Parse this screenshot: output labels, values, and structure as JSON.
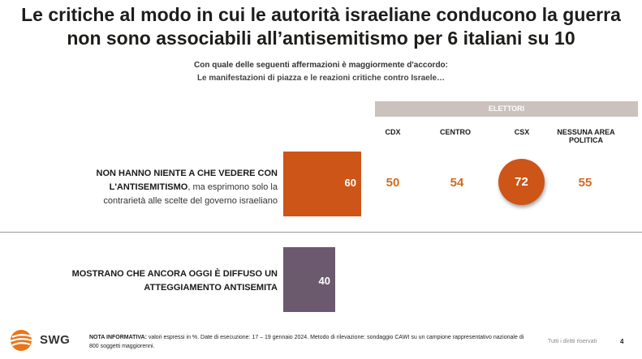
{
  "title_line1": "Le critiche al modo in cui le autorità israeliane conducono la guerra",
  "title_line2": "non sono associabili all’antisemitismo per 6 italiani su 10",
  "question": "Con quale delle seguenti affermazioni è maggiormente d'accordo:",
  "subquestion": "Le manifestazioni di piazza e le reazioni critiche contro Israele…",
  "group_header": "ELETTORI",
  "columns": [
    "CDX",
    "CENTRO",
    "CSX",
    "NESSUNA AREA POLITICA"
  ],
  "rows": [
    {
      "label_bold": "NON HANNO NIENTE A CHE VEDERE CON L'ANTISEMITISMO",
      "label_rest": ", ma esprimono solo la contrarietà alle scelte del governo israeliano",
      "total": "60",
      "values": [
        "50",
        "54",
        "72",
        "55"
      ]
    },
    {
      "label_bold": "MOSTRANO CHE ANCORA OGGI È DIFFUSO UN ATTEGGIAMENTO ANTISEMITA",
      "label_rest": "",
      "total": "40",
      "values": []
    }
  ],
  "chart_data": {
    "type": "bar",
    "categories": [
      "NON HANNO NIENTE A CHE VEDERE CON L'ANTISEMITISMO, ma esprimono solo la contrarietà alle scelte del governo israeliano",
      "MOSTRANO CHE ANCORA OGGI È DIFFUSO UN ATTEGGIAMENTO ANTISEMITA"
    ],
    "values": [
      60,
      40
    ],
    "breakdown": {
      "group": "ELETTORI",
      "columns": [
        "CDX",
        "CENTRO",
        "CSX",
        "NESSUNA AREA POLITICA"
      ],
      "values": [
        [
          50,
          54,
          72,
          55
        ]
      ]
    },
    "highlight": "CSX",
    "colors": [
      "#cd5518",
      "#6b5a6e"
    ]
  },
  "colors": {
    "bar1": "#cd5518",
    "bar2": "#6b5a6e",
    "value_text": "#d36a1f",
    "header_bg": "#cbc1bd"
  },
  "footer": {
    "logo": "SWG",
    "note_label": "NOTA INFORMATIVA:",
    "note_text": " valori espressi in %. Date di esecuzione: 17 – 19 gennaio 2024. Metodo di rilevazione: sondaggio CAWI su un campione rappresentativo nazionale di 800 soggetti maggiorenni.",
    "rights": "Tutti i diritti riservati",
    "page": "4"
  }
}
